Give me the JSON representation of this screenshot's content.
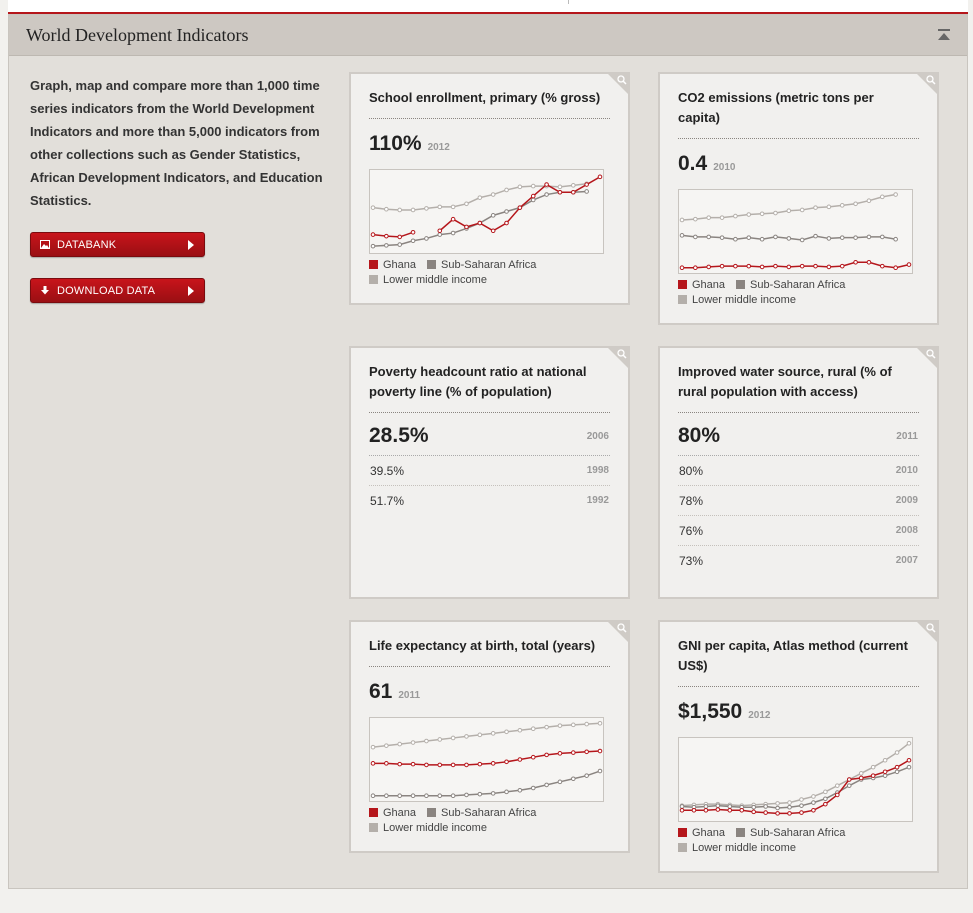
{
  "header": {
    "title": "World Development Indicators"
  },
  "intro": {
    "text": "Graph, map and compare more than 1,000 time series indicators from the World Development Indicators and more than 5,000 indicators from other collections such as Gender Statistics, African Development Indicators, and Education Statistics."
  },
  "buttons": {
    "databank": "DATABANK",
    "download": "DOWNLOAD DATA"
  },
  "legend": {
    "ghana": "Ghana",
    "ssa": "Sub-Saharan Africa",
    "lmi": "Lower middle income"
  },
  "colors": {
    "ghana": "#b5161b",
    "ssa": "#8a8480",
    "lmi": "#b4afaa",
    "accent": "#b5161b"
  },
  "icons": [
    "chevron-up-icon",
    "magnifier-icon",
    "image-icon",
    "download-icon"
  ],
  "cards": {
    "school": {
      "title": "School enrollment, primary (% gross)",
      "value": "110%",
      "year": "2012"
    },
    "co2": {
      "title": "CO2 emissions (metric tons per capita)",
      "value": "0.4",
      "year": "2010"
    },
    "poverty": {
      "title": "Poverty headcount ratio at national poverty line (% of population)",
      "rows": [
        {
          "value": "28.5%",
          "year": "2006"
        },
        {
          "value": "39.5%",
          "year": "1998"
        },
        {
          "value": "51.7%",
          "year": "1992"
        }
      ]
    },
    "water": {
      "title": "Improved water source, rural (% of rural population with access)",
      "rows": [
        {
          "value": "80%",
          "year": "2011"
        },
        {
          "value": "80%",
          "year": "2010"
        },
        {
          "value": "78%",
          "year": "2009"
        },
        {
          "value": "76%",
          "year": "2008"
        },
        {
          "value": "73%",
          "year": "2007"
        }
      ]
    },
    "life": {
      "title": "Life expectancy at birth, total (years)",
      "value": "61",
      "year": "2011"
    },
    "gni": {
      "title": "GNI per capita, Atlas method (current US$)",
      "value": "$1,550",
      "year": "2012"
    }
  },
  "chart_data": [
    {
      "type": "line",
      "id": "school",
      "ylim": [
        0,
        100
      ],
      "series": [
        {
          "name": "Ghana",
          "values": [
            20,
            18,
            17,
            23,
            null,
            25,
            40,
            30,
            35,
            25,
            35,
            55,
            70,
            85,
            75,
            75,
            85,
            95
          ]
        },
        {
          "name": "Sub-Saharan Africa",
          "values": [
            5,
            6,
            7,
            12,
            15,
            20,
            22,
            28,
            35,
            45,
            50,
            55,
            65,
            72,
            75,
            75,
            76,
            null
          ]
        },
        {
          "name": "Lower middle income",
          "values": [
            55,
            53,
            52,
            52,
            54,
            56,
            56,
            60,
            68,
            72,
            78,
            82,
            83,
            83,
            82,
            84,
            86,
            null
          ]
        }
      ]
    },
    {
      "type": "line",
      "id": "co2",
      "ylim": [
        0,
        100
      ],
      "series": [
        {
          "name": "Ghana",
          "values": [
            3,
            3,
            4,
            5,
            5,
            5,
            4,
            5,
            4,
            5,
            5,
            4,
            5,
            10,
            10,
            5,
            3,
            7
          ]
        },
        {
          "name": "Sub-Saharan Africa",
          "values": [
            45,
            43,
            43,
            42,
            40,
            42,
            40,
            43,
            41,
            39,
            44,
            41,
            42,
            42,
            43,
            43,
            40,
            null
          ]
        },
        {
          "name": "Lower middle income",
          "values": [
            65,
            66,
            68,
            68,
            70,
            72,
            73,
            74,
            77,
            78,
            81,
            82,
            84,
            86,
            90,
            95,
            98,
            null
          ]
        }
      ]
    },
    {
      "type": "line",
      "id": "life",
      "ylim": [
        0,
        100
      ],
      "series": [
        {
          "name": "Ghana",
          "values": [
            45,
            45,
            44,
            44,
            43,
            43,
            43,
            43,
            44,
            45,
            47,
            50,
            53,
            56,
            58,
            59,
            60,
            61
          ]
        },
        {
          "name": "Sub-Saharan Africa",
          "values": [
            3,
            3,
            3,
            3,
            3,
            3,
            3,
            4,
            5,
            6,
            8,
            10,
            13,
            17,
            21,
            25,
            29,
            35
          ]
        },
        {
          "name": "Lower middle income",
          "values": [
            66,
            68,
            70,
            72,
            74,
            76,
            78,
            80,
            82,
            84,
            86,
            88,
            90,
            92,
            94,
            95,
            96,
            97
          ]
        }
      ]
    },
    {
      "type": "line",
      "id": "gni",
      "ylim": [
        0,
        100
      ],
      "series": [
        {
          "name": "Ghana",
          "values": [
            10,
            10,
            10,
            11,
            10,
            10,
            8,
            7,
            6,
            6,
            7,
            10,
            18,
            30,
            50,
            52,
            55,
            60,
            66,
            75
          ]
        },
        {
          "name": "Sub-Saharan Africa",
          "values": [
            15,
            14,
            15,
            16,
            15,
            14,
            14,
            15,
            13,
            14,
            16,
            20,
            25,
            33,
            42,
            50,
            52,
            55,
            60,
            66
          ]
        },
        {
          "name": "Lower middle income",
          "values": [
            16,
            17,
            18,
            18,
            17,
            16,
            17,
            18,
            19,
            20,
            24,
            28,
            34,
            42,
            50,
            58,
            66,
            75,
            85,
            97
          ]
        }
      ]
    }
  ]
}
